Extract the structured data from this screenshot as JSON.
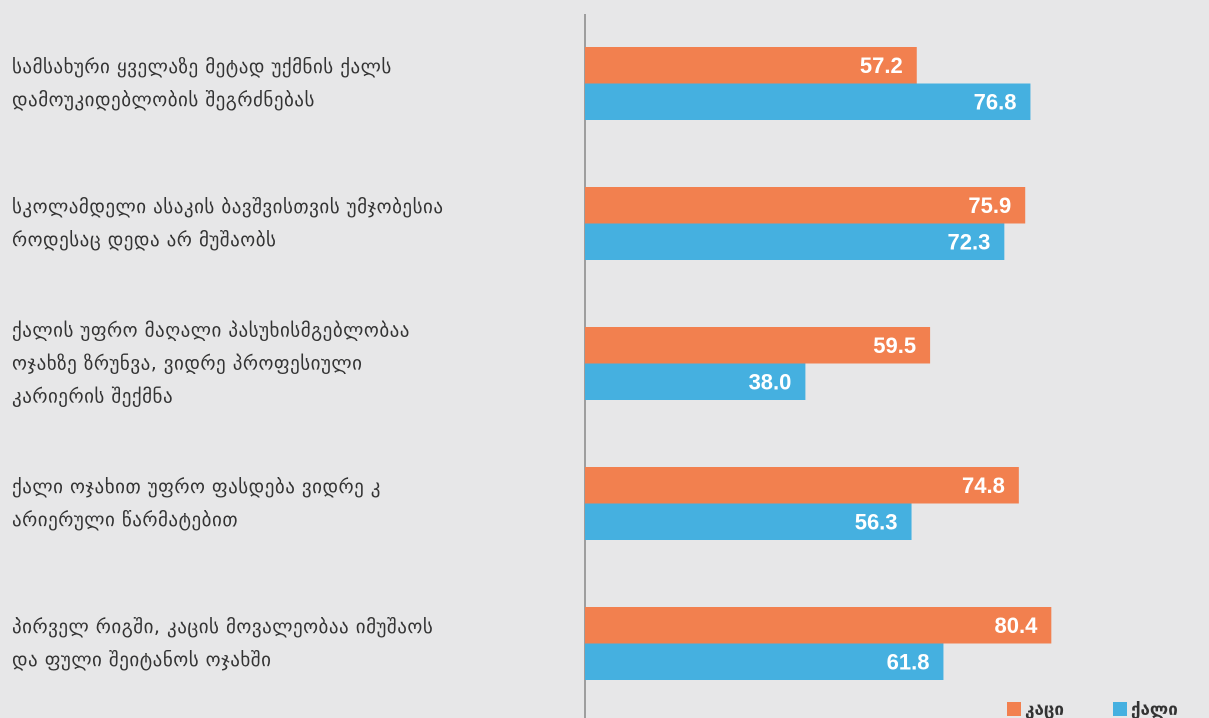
{
  "chart_data": {
    "type": "bar",
    "orientation": "horizontal",
    "categories": [
      "სამსახური ყველაზე მეტად უქმნის ქალს\nდამოუკიდებლობის შეგრძნებას",
      "სკოლამდელი ასაკის ბავშვისთვის უმჯობესია\nროდესაც დედა არ მუშაობს",
      "ქალის უფრო მაღალი პასუხისმგებლობაა\nოჯახზე ზრუნვა, ვიდრე პროფესიული\nკარიერის შექმნა",
      "ქალი ოჯახით უფრო ფასდება ვიდრე კ\nარიერული წარმატებით",
      "პირველ რიგში, კაცის მოვალეობაა იმუშაოს\nდა ფული შეიტანოს ოჯახში"
    ],
    "series": [
      {
        "name": "კაცი",
        "color": "#f2804f",
        "values": [
          57.2,
          75.9,
          59.5,
          74.8,
          80.4
        ],
        "value_labels": [
          "57.2",
          "75.9",
          "59.5",
          "74.8",
          "80.4"
        ]
      },
      {
        "name": "ქალი",
        "color": "#45b0e0",
        "values": [
          76.8,
          72.3,
          38.0,
          56.3,
          61.8
        ],
        "value_labels": [
          "76.8",
          "72.3",
          "38.0",
          "56.3",
          "61.8"
        ]
      }
    ],
    "xlim": [
      0,
      100
    ],
    "legend": "bottom-right"
  }
}
